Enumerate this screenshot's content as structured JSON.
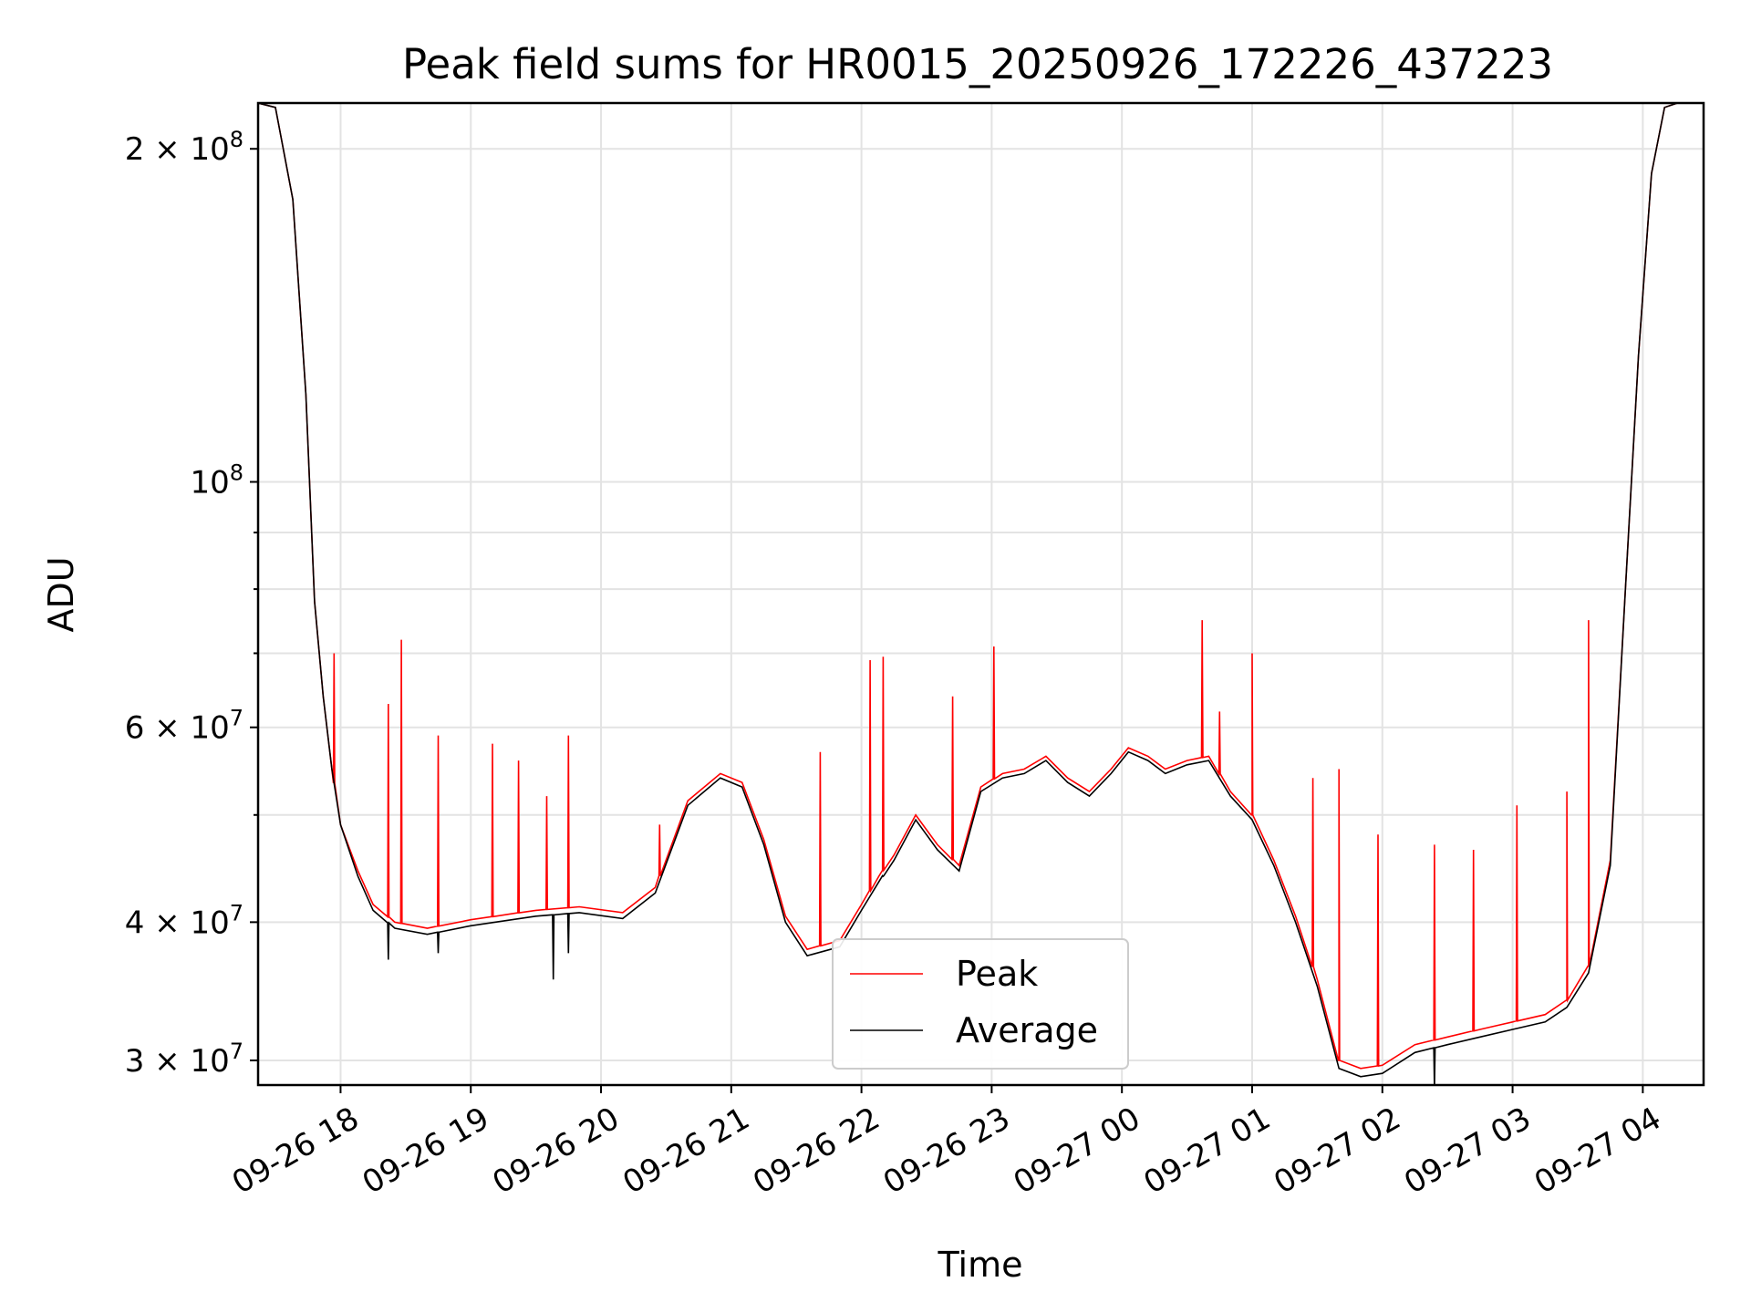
{
  "chart_data": {
    "type": "line",
    "title": "Peak field sums for HR0015_20250926_172226_437223",
    "xlabel": "Time",
    "ylabel": "ADU",
    "yscale": "log",
    "ylim": [
      28500000,
      220000000
    ],
    "xlim": [
      "2025-09-26 17:22",
      "2025-09-27 04:28"
    ],
    "grid": true,
    "legend": "lower-center",
    "x_ticks": [
      "09-26 18",
      "09-26 19",
      "09-26 20",
      "09-26 21",
      "09-26 22",
      "09-26 23",
      "09-27 00",
      "09-27 01",
      "09-27 02",
      "09-27 03",
      "09-27 04"
    ],
    "y_ticks": [
      {
        "value": 200000000,
        "base": "2 × 10",
        "exp": "8"
      },
      {
        "value": 100000000,
        "base": "10",
        "exp": "8"
      },
      {
        "value": 60000000,
        "base": "6 × 10",
        "exp": "7"
      },
      {
        "value": 40000000,
        "base": "4 × 10",
        "exp": "7"
      },
      {
        "value": 30000000,
        "base": "3 × 10",
        "exp": "7"
      }
    ],
    "x": [
      "2025-09-26 17:22",
      "2025-09-26 17:30",
      "2025-09-26 17:38",
      "2025-09-26 17:44",
      "2025-09-26 17:48",
      "2025-09-26 17:52",
      "2025-09-26 17:56",
      "2025-09-26 18:00",
      "2025-09-26 18:08",
      "2025-09-26 18:15",
      "2025-09-26 18:25",
      "2025-09-26 18:40",
      "2025-09-26 19:00",
      "2025-09-26 19:30",
      "2025-09-26 19:50",
      "2025-09-26 20:10",
      "2025-09-26 20:25",
      "2025-09-26 20:40",
      "2025-09-26 20:55",
      "2025-09-26 21:05",
      "2025-09-26 21:15",
      "2025-09-26 21:25",
      "2025-09-26 21:35",
      "2025-09-26 21:50",
      "2025-09-26 22:00",
      "2025-09-26 22:08",
      "2025-09-26 22:15",
      "2025-09-26 22:25",
      "2025-09-26 22:35",
      "2025-09-26 22:45",
      "2025-09-26 22:55",
      "2025-09-26 23:05",
      "2025-09-26 23:15",
      "2025-09-26 23:25",
      "2025-09-26 23:35",
      "2025-09-26 23:45",
      "2025-09-26 23:55",
      "2025-09-27 00:03",
      "2025-09-27 00:12",
      "2025-09-27 00:20",
      "2025-09-27 00:30",
      "2025-09-27 00:40",
      "2025-09-27 00:50",
      "2025-09-27 01:00",
      "2025-09-27 01:10",
      "2025-09-27 01:20",
      "2025-09-27 01:30",
      "2025-09-27 01:40",
      "2025-09-27 01:50",
      "2025-09-27 02:00",
      "2025-09-27 02:15",
      "2025-09-27 02:30",
      "2025-09-27 02:45",
      "2025-09-27 03:00",
      "2025-09-27 03:15",
      "2025-09-27 03:25",
      "2025-09-27 03:35",
      "2025-09-27 03:45",
      "2025-09-27 03:52",
      "2025-09-27 03:58",
      "2025-09-27 04:04",
      "2025-09-27 04:10",
      "2025-09-27 04:16",
      "2025-09-27 04:28"
    ],
    "series": [
      {
        "name": "Average",
        "color": "#000000",
        "values": [
          220000000,
          218000000,
          180000000,
          120000000,
          78000000,
          64000000,
          55000000,
          49000000,
          44000000,
          41000000,
          39500000,
          39000000,
          39700000,
          40500000,
          40800000,
          40300000,
          42500000,
          51000000,
          54000000,
          53000000,
          47000000,
          40000000,
          37300000,
          38000000,
          41000000,
          43500000,
          45500000,
          49500000,
          46500000,
          44500000,
          52500000,
          54000000,
          54500000,
          56000000,
          53500000,
          52000000,
          54500000,
          57000000,
          56000000,
          54500000,
          55500000,
          56000000,
          52000000,
          49500000,
          45000000,
          40000000,
          35000000,
          29500000,
          29000000,
          29200000,
          30500000,
          31000000,
          31500000,
          32000000,
          32500000,
          33500000,
          36000000,
          45000000,
          80000000,
          130000000,
          190000000,
          218000000,
          220000000,
          220000000
        ]
      },
      {
        "name": "Peak",
        "color": "#ff0000",
        "values": [
          220000000,
          218000000,
          180000000,
          120000000,
          78000000,
          64000000,
          55000000,
          49000000,
          44500000,
          41500000,
          40000000,
          39500000,
          40200000,
          41000000,
          41300000,
          40800000,
          43000000,
          51500000,
          54500000,
          53500000,
          47500000,
          40500000,
          37800000,
          38500000,
          41500000,
          44000000,
          46000000,
          50000000,
          47000000,
          45000000,
          53000000,
          54500000,
          55000000,
          56500000,
          54000000,
          52500000,
          55000000,
          57500000,
          56500000,
          55000000,
          56000000,
          56500000,
          52500000,
          50000000,
          45500000,
          40500000,
          35500000,
          30000000,
          29500000,
          29700000,
          31000000,
          31500000,
          32000000,
          32500000,
          33000000,
          34000000,
          36500000,
          45500000,
          80000000,
          130000000,
          190000000,
          218000000,
          220000000,
          220000000
        ]
      }
    ],
    "peak_spikes": [
      {
        "x": "2025-09-26 17:57",
        "y": 70000000
      },
      {
        "x": "2025-09-26 18:22",
        "y": 63000000
      },
      {
        "x": "2025-09-26 18:28",
        "y": 72000000
      },
      {
        "x": "2025-09-26 18:45",
        "y": 59000000
      },
      {
        "x": "2025-09-26 19:10",
        "y": 58000000
      },
      {
        "x": "2025-09-26 19:22",
        "y": 56000000
      },
      {
        "x": "2025-09-26 19:35",
        "y": 52000000
      },
      {
        "x": "2025-09-26 19:45",
        "y": 59000000
      },
      {
        "x": "2025-09-26 20:27",
        "y": 49000000
      },
      {
        "x": "2025-09-26 21:41",
        "y": 57000000
      },
      {
        "x": "2025-09-26 22:04",
        "y": 69000000
      },
      {
        "x": "2025-09-26 22:10",
        "y": 69500000
      },
      {
        "x": "2025-09-26 22:42",
        "y": 64000000
      },
      {
        "x": "2025-09-26 23:01",
        "y": 71000000
      },
      {
        "x": "2025-09-27 00:37",
        "y": 75000000
      },
      {
        "x": "2025-09-27 00:45",
        "y": 62000000
      },
      {
        "x": "2025-09-27 01:00",
        "y": 70000000
      },
      {
        "x": "2025-09-27 01:28",
        "y": 54000000
      },
      {
        "x": "2025-09-27 01:40",
        "y": 55000000
      },
      {
        "x": "2025-09-27 01:58",
        "y": 48000000
      },
      {
        "x": "2025-09-27 02:24",
        "y": 47000000
      },
      {
        "x": "2025-09-27 02:42",
        "y": 46500000
      },
      {
        "x": "2025-09-27 03:02",
        "y": 51000000
      },
      {
        "x": "2025-09-27 03:25",
        "y": 52500000
      },
      {
        "x": "2025-09-27 03:35",
        "y": 75000000
      }
    ],
    "average_dips": [
      {
        "x": "2025-09-26 18:22",
        "y": 37000000
      },
      {
        "x": "2025-09-26 18:45",
        "y": 37500000
      },
      {
        "x": "2025-09-26 19:38",
        "y": 35500000
      },
      {
        "x": "2025-09-26 19:45",
        "y": 37500000
      },
      {
        "x": "2025-09-26 22:10",
        "y": 44000000
      },
      {
        "x": "2025-09-27 02:24",
        "y": 28300000
      }
    ]
  }
}
